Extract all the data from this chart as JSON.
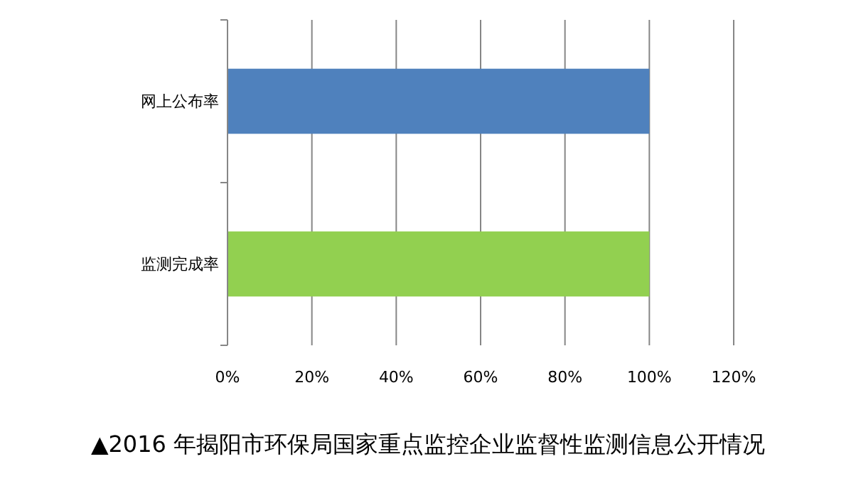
{
  "chart_data": {
    "type": "bar",
    "orientation": "horizontal",
    "title": "▲2016 年揭阳市环保局国家重点监控企业监督性监测信息公开情况",
    "categories": [
      "网上公布率",
      "监测完成率"
    ],
    "values": [
      100,
      100
    ],
    "colors": [
      "#4f81bd",
      "#92d050"
    ],
    "xlim": [
      0,
      120
    ],
    "xticks": [
      {
        "value": 0,
        "label": "0%"
      },
      {
        "value": 20,
        "label": "20%"
      },
      {
        "value": 40,
        "label": "40%"
      },
      {
        "value": 60,
        "label": "60%"
      },
      {
        "value": 80,
        "label": "80%"
      },
      {
        "value": 100,
        "label": "100%"
      },
      {
        "value": 120,
        "label": "120%"
      }
    ],
    "grid": "x"
  }
}
